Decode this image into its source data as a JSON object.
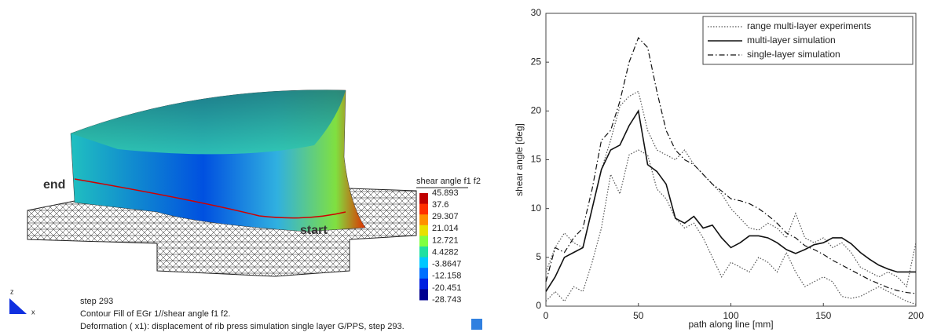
{
  "simulation_view": {
    "end_label": "end",
    "start_label": "start",
    "colorbar": {
      "title": "shear angle f1 f2",
      "ticks": [
        45.893,
        37.6,
        29.307,
        21.014,
        12.721,
        4.4282,
        -3.8647,
        -12.158,
        -20.451,
        -28.743
      ],
      "colors": [
        "#c00000",
        "#ff3000",
        "#ff9000",
        "#e8e000",
        "#80ff40",
        "#20e0a0",
        "#00c8ff",
        "#0070ff",
        "#0020e0",
        "#000090"
      ]
    },
    "axis_z": "z",
    "axis_x": "x",
    "caption": [
      "step 293",
      "Contour Fill of EGr 1//shear angle f1 f2.",
      "Deformation ( x1): displacement of rib press simulation single layer G/PPS, step 293."
    ]
  },
  "chart_data": {
    "type": "line",
    "xlabel": "path along line [mm]",
    "ylabel": "shear angle [deg]",
    "x": [
      0,
      5,
      10,
      15,
      20,
      25,
      30,
      35,
      40,
      45,
      50,
      55,
      60,
      65,
      70,
      75,
      80,
      85,
      90,
      95,
      100,
      105,
      110,
      115,
      120,
      125,
      130,
      135,
      140,
      145,
      150,
      155,
      160,
      165,
      170,
      175,
      180,
      185,
      190,
      195,
      200
    ],
    "series": [
      {
        "name": "range multi-layer experiments",
        "color": "#555555",
        "style": "dotted",
        "values": [
          3.5,
          6,
          7.5,
          6.5,
          6,
          10,
          14,
          17,
          20.5,
          21.5,
          22,
          18,
          16,
          15.5,
          15,
          16,
          14.5,
          13.5,
          12.5,
          11.5,
          10,
          9,
          8,
          7.8,
          8.5,
          8,
          7,
          9.5,
          7,
          6.5,
          7,
          6,
          6.5,
          5.5,
          4,
          3.5,
          3,
          3.5,
          3,
          2,
          6.5
        ],
        "lower": [
          0.5,
          1.5,
          0.5,
          2,
          1.5,
          4.5,
          8,
          13.5,
          11.5,
          15.5,
          16,
          15.5,
          12,
          11,
          9,
          8,
          8.5,
          7,
          5,
          3,
          4.5,
          4,
          3.5,
          5,
          4.5,
          3.5,
          5.5,
          3.5,
          2,
          2.5,
          3,
          2.5,
          1,
          0.8,
          1,
          1.5,
          2,
          1.5,
          1,
          0.5,
          0.2
        ]
      },
      {
        "name": "multi-layer simulation",
        "color": "#111111",
        "style": "solid",
        "values": [
          1.5,
          3,
          5,
          5.5,
          6,
          10,
          14,
          16,
          16.5,
          18.5,
          20,
          14.5,
          13.8,
          12.5,
          9,
          8.5,
          9.2,
          8,
          8.3,
          7,
          6,
          6.5,
          7.2,
          7.2,
          7,
          6.5,
          5.8,
          5.4,
          5.8,
          6.3,
          6.5,
          7,
          7,
          6.4,
          5.5,
          4.8,
          4.2,
          3.8,
          3.5,
          3.5,
          3.5
        ]
      },
      {
        "name": "single-layer simulation",
        "color": "#111111",
        "style": "dashdot",
        "values": [
          2.5,
          6,
          5.5,
          7,
          8,
          12,
          17,
          18,
          21,
          25,
          27.5,
          26.5,
          22,
          18,
          16,
          15,
          14.5,
          13.5,
          12.5,
          11.8,
          11,
          10.8,
          10.5,
          10,
          9.3,
          8.5,
          7.5,
          7,
          6.2,
          5.8,
          5.3,
          4.7,
          4.2,
          3.7,
          3.2,
          2.7,
          2.3,
          1.9,
          1.6,
          1.4,
          1.3
        ]
      }
    ],
    "xlim": [
      0,
      200
    ],
    "xticks": [
      0,
      50,
      100,
      150,
      200
    ],
    "ylim": [
      0,
      30
    ],
    "yticks": [
      0,
      5,
      10,
      15,
      20,
      25,
      30
    ],
    "legend": "upper right"
  }
}
